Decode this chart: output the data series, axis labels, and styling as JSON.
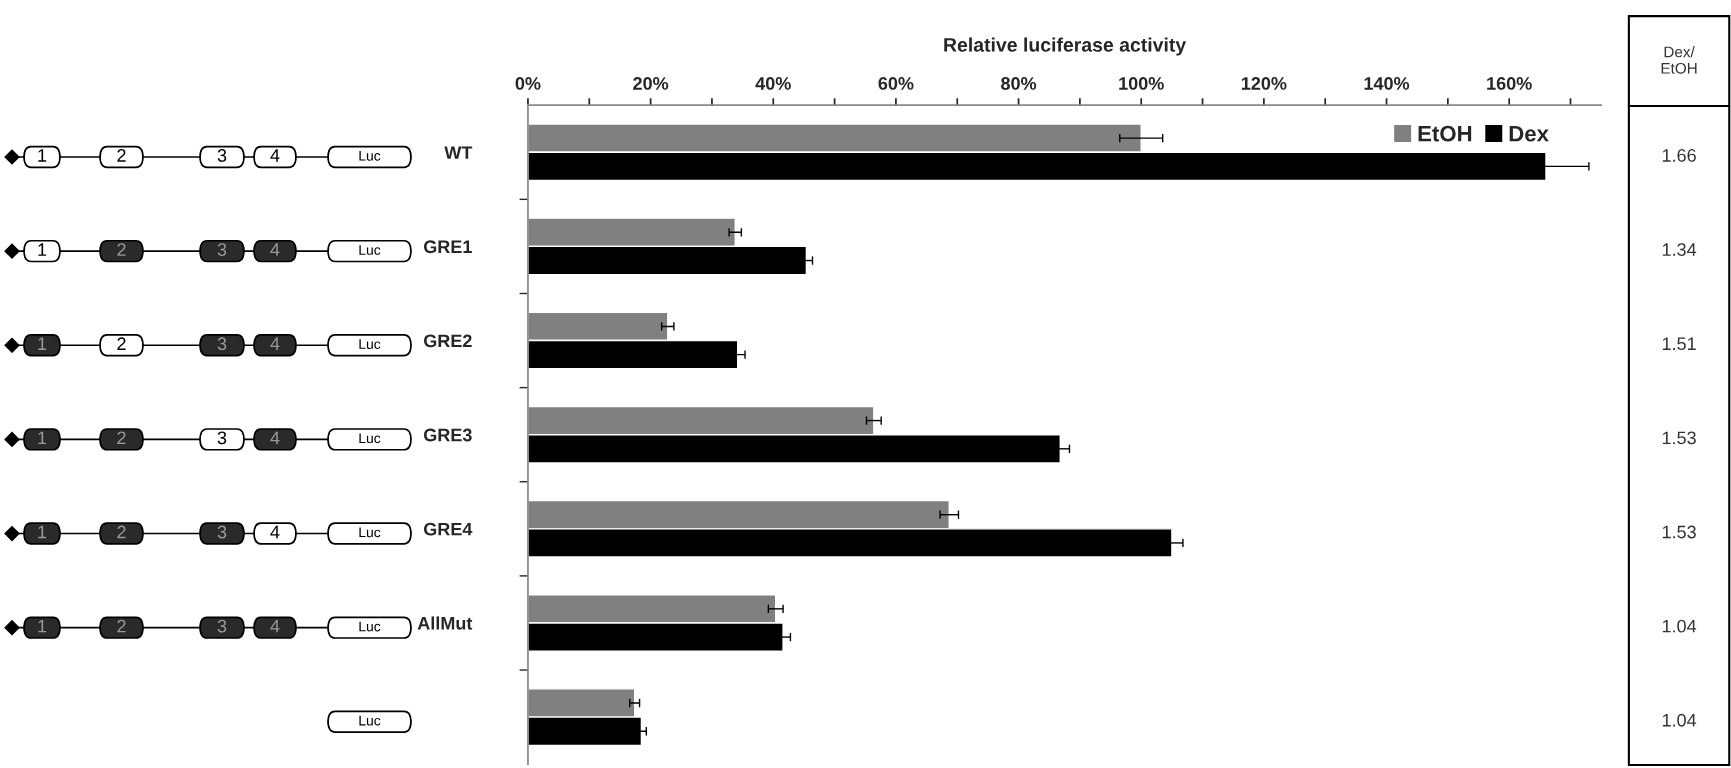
{
  "chart_data": {
    "type": "bar",
    "orientation": "horizontal",
    "xlabel": "Relative luciferase activity",
    "categories": [
      "WT",
      "GRE1",
      "GRE2",
      "GRE3",
      "GRE4",
      "AllMut",
      null
    ],
    "series": [
      {
        "name": "EtOH",
        "color": "#808080",
        "values": [
          100,
          33.8,
          22.8,
          56.4,
          68.7,
          40.4,
          17.4
        ],
        "errors": [
          3.5,
          1,
          1,
          1.2,
          1.5,
          1.2,
          0.8
        ]
      },
      {
        "name": "Dex",
        "color": "#000000",
        "values": [
          166,
          45.4,
          34.2,
          86.8,
          105,
          41.6,
          18.5
        ],
        "errors": [
          7,
          1,
          1.2,
          1.5,
          1.8,
          1.2,
          0.8
        ]
      }
    ],
    "xlim": [
      0,
      175
    ],
    "xticks": [
      {
        "value": 0,
        "label": "0%"
      },
      {
        "value": 10,
        "label": null
      },
      {
        "value": 20,
        "label": "20%"
      },
      {
        "value": 30,
        "label": null
      },
      {
        "value": 40,
        "label": "40%"
      },
      {
        "value": 50,
        "label": null
      },
      {
        "value": 60,
        "label": "60%"
      },
      {
        "value": 70,
        "label": null
      },
      {
        "value": 80,
        "label": "80%"
      },
      {
        "value": 90,
        "label": null
      },
      {
        "value": 100,
        "label": "100%"
      },
      {
        "value": 110,
        "label": null
      },
      {
        "value": 120,
        "label": "120%"
      },
      {
        "value": 130,
        "label": null
      },
      {
        "value": 140,
        "label": "140%"
      },
      {
        "value": 150,
        "label": null
      },
      {
        "value": 160,
        "label": "160%"
      },
      {
        "value": 170,
        "label": null
      }
    ],
    "grid": false,
    "legend": "top right",
    "annotations": [
      "Dex/\nEtOH",
      "1.66",
      "1.34",
      "1.51",
      "1.53",
      "1.53",
      "1.04",
      "1.04",
      "1",
      "2",
      "3",
      "4",
      "Luc"
    ]
  }
}
